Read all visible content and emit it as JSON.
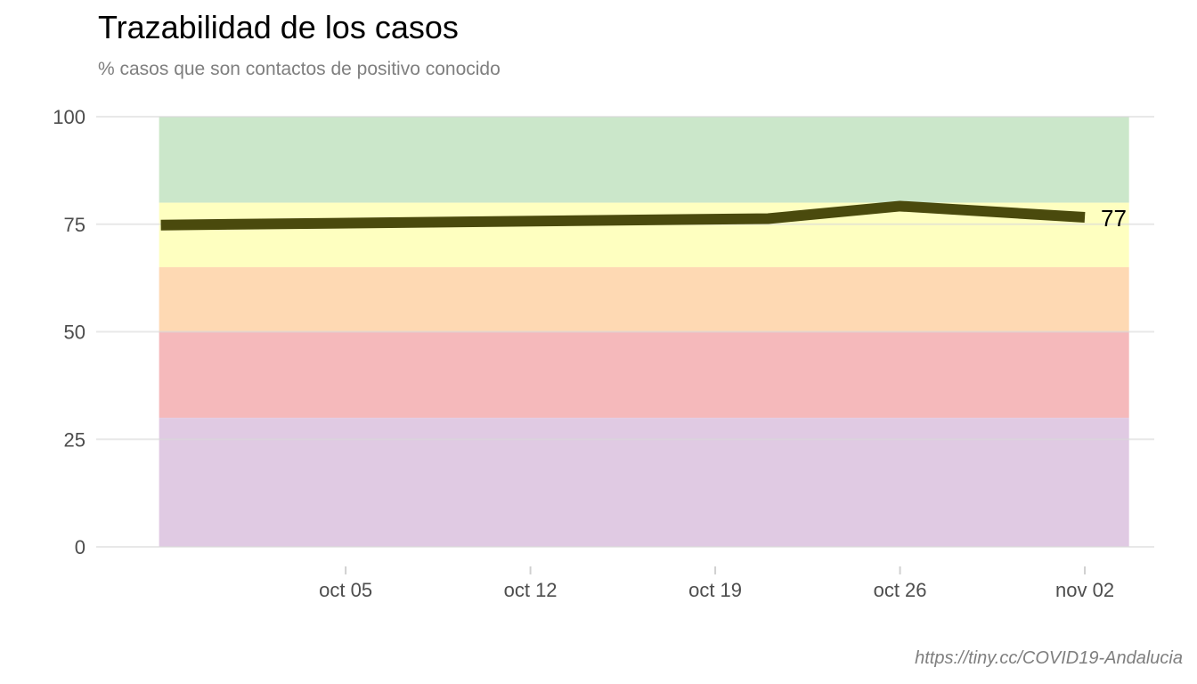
{
  "chart_data": {
    "type": "line",
    "title": "Trazabilidad de los casos",
    "subtitle": "% casos que son contactos de positivo conocido",
    "caption": "https://tiny.cc/COVID19-Andalucia",
    "xlabel": "",
    "ylabel": "",
    "ylim": [
      0,
      100
    ],
    "xlim": [
      "2020-09-28",
      "2020-11-03"
    ],
    "grid": "horizontal",
    "y_ticks": [
      0,
      25,
      50,
      75,
      100
    ],
    "x_ticks": [
      {
        "date": "2020-10-05",
        "label": "oct 05"
      },
      {
        "date": "2020-10-12",
        "label": "oct 12"
      },
      {
        "date": "2020-10-19",
        "label": "oct 19"
      },
      {
        "date": "2020-10-26",
        "label": "oct 26"
      },
      {
        "date": "2020-11-02",
        "label": "nov 02"
      }
    ],
    "bands": [
      {
        "from": 80,
        "to": 100,
        "color": "#cbe7ca"
      },
      {
        "from": 65,
        "to": 80,
        "color": "#feffc0"
      },
      {
        "from": 50,
        "to": 65,
        "color": "#fed9b3"
      },
      {
        "from": 30,
        "to": 50,
        "color": "#f5b9bb"
      },
      {
        "from": 0,
        "to": 30,
        "color": "#e0cae3"
      }
    ],
    "series": [
      {
        "color": "#4a4a0d",
        "x": [
          "2020-09-28",
          "2020-10-21",
          "2020-10-26",
          "2020-11-02"
        ],
        "y": [
          74.8,
          76.3,
          79.2,
          76.6
        ],
        "end_label": "77"
      }
    ]
  }
}
